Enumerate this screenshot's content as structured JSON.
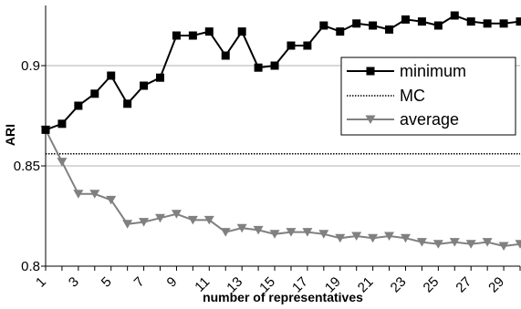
{
  "chart_data": {
    "type": "line",
    "title": "",
    "xlabel": "number of representatives",
    "ylabel": "ARI",
    "x": [
      1,
      2,
      3,
      4,
      5,
      6,
      7,
      8,
      9,
      10,
      11,
      12,
      13,
      14,
      15,
      16,
      17,
      18,
      19,
      20,
      21,
      22,
      23,
      24,
      25,
      26,
      27,
      28,
      29,
      30
    ],
    "xlim": [
      1,
      30
    ],
    "ylim": [
      0.8,
      0.93
    ],
    "yticks": [
      0.8,
      0.85,
      0.9
    ],
    "ytick_labels": [
      "0.8",
      "0.85",
      "0.9"
    ],
    "xticks": [
      1,
      3,
      5,
      7,
      9,
      11,
      13,
      15,
      17,
      19,
      21,
      23,
      25,
      27,
      29
    ],
    "xtick_labels": [
      "1",
      "3",
      "5",
      "7",
      "9",
      "11",
      "13",
      "15",
      "17",
      "19",
      "21",
      "23",
      "25",
      "27",
      "29"
    ],
    "grid": "horizontal",
    "legend_position": "right",
    "series": [
      {
        "name": "minimum",
        "marker": "square",
        "line": "solid",
        "color": "#000000",
        "values": [
          0.868,
          0.871,
          0.88,
          0.886,
          0.895,
          0.881,
          0.89,
          0.894,
          0.915,
          0.915,
          0.917,
          0.905,
          0.917,
          0.899,
          0.9,
          0.91,
          0.91,
          0.92,
          0.917,
          0.921,
          0.92,
          0.918,
          0.923,
          0.922,
          0.92,
          0.925,
          0.922,
          0.921,
          0.921,
          0.922
        ]
      },
      {
        "name": "MC",
        "marker": "none",
        "line": "dotted",
        "color": "#000000",
        "values": [
          0.856,
          0.856,
          0.856,
          0.856,
          0.856,
          0.856,
          0.856,
          0.856,
          0.856,
          0.856,
          0.856,
          0.856,
          0.856,
          0.856,
          0.856,
          0.856,
          0.856,
          0.856,
          0.856,
          0.856,
          0.856,
          0.856,
          0.856,
          0.856,
          0.856,
          0.856,
          0.856,
          0.856,
          0.856,
          0.856
        ]
      },
      {
        "name": "average",
        "marker": "triangle-down",
        "line": "solid",
        "color": "#808080",
        "values": [
          0.868,
          0.852,
          0.836,
          0.836,
          0.833,
          0.821,
          0.822,
          0.824,
          0.826,
          0.823,
          0.823,
          0.817,
          0.819,
          0.818,
          0.816,
          0.817,
          0.817,
          0.816,
          0.814,
          0.815,
          0.814,
          0.815,
          0.814,
          0.812,
          0.811,
          0.812,
          0.811,
          0.812,
          0.81,
          0.811
        ]
      }
    ]
  }
}
